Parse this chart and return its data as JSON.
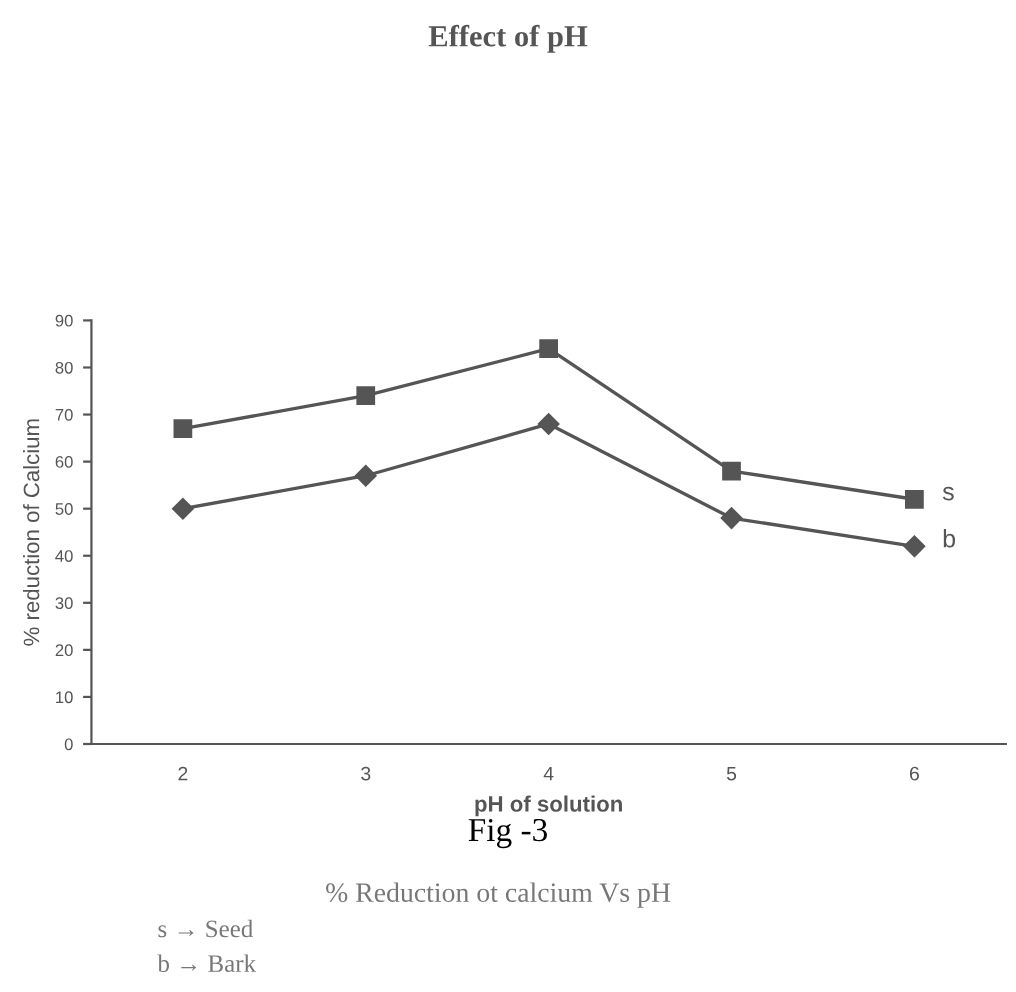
{
  "chart_data": {
    "type": "line",
    "title": "Effect of pH",
    "xlabel": "pH of solution",
    "ylabel": "% reduction of Calcium",
    "categories": [
      "2",
      "3",
      "4",
      "5",
      "6"
    ],
    "series": [
      {
        "name": "s",
        "color": "#555555",
        "marker": "square",
        "values": [
          67,
          74,
          84,
          58,
          52
        ]
      },
      {
        "name": "b",
        "color": "#555555",
        "marker": "diamond",
        "values": [
          50,
          57,
          68,
          48,
          42
        ]
      }
    ],
    "ylim": [
      0,
      90
    ],
    "yticks": [
      0,
      10,
      20,
      30,
      40,
      50,
      60,
      70,
      80,
      90
    ],
    "grid": false,
    "legend": false,
    "line_style": "solid",
    "annotations": [
      "Fig -3",
      "% Reduction ot calcium Vs pH",
      "s → Seed",
      "b → Bark"
    ]
  }
}
